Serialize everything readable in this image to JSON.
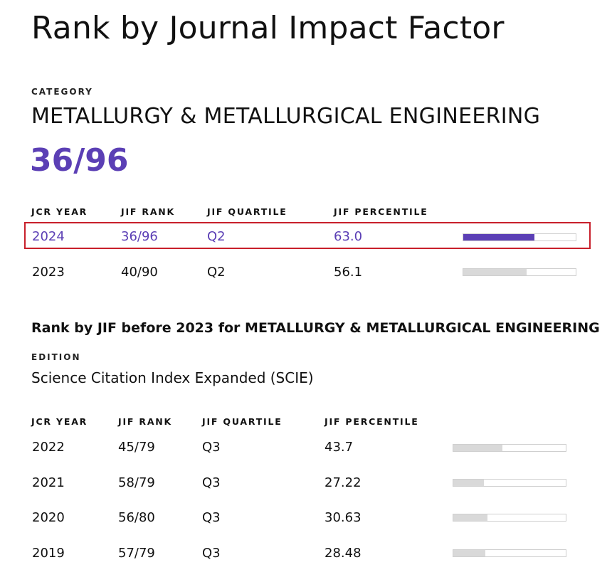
{
  "title": "Rank by Journal Impact Factor",
  "category": {
    "label": "CATEGORY",
    "name": "METALLURGY & METALLURGICAL ENGINEERING",
    "rank": "36/96"
  },
  "current_table": {
    "headers": [
      "JCR YEAR",
      "JIF RANK",
      "JIF QUARTILE",
      "JIF PERCENTILE"
    ],
    "rows": [
      {
        "year": "2024",
        "rank": "36/96",
        "quartile": "Q2",
        "percentile": "63.0",
        "fraction": 0.63,
        "highlighted": true
      },
      {
        "year": "2023",
        "rank": "40/90",
        "quartile": "Q2",
        "percentile": "56.1",
        "fraction": 0.561,
        "highlighted": false
      }
    ]
  },
  "before_2023": {
    "heading": "Rank by JIF before 2023 for METALLURGY & METALLURGICAL ENGINEERING",
    "edition_label": "EDITION",
    "edition_value": "Science Citation Index Expanded (SCIE)",
    "headers": [
      "JCR YEAR",
      "JIF RANK",
      "JIF QUARTILE",
      "JIF PERCENTILE"
    ],
    "rows": [
      {
        "year": "2022",
        "rank": "45/79",
        "quartile": "Q3",
        "percentile": "43.7",
        "fraction": 0.437
      },
      {
        "year": "2021",
        "rank": "58/79",
        "quartile": "Q3",
        "percentile": "27.22",
        "fraction": 0.2722
      },
      {
        "year": "2020",
        "rank": "56/80",
        "quartile": "Q3",
        "percentile": "30.63",
        "fraction": 0.3063
      },
      {
        "year": "2019",
        "rank": "57/79",
        "quartile": "Q3",
        "percentile": "28.48",
        "fraction": 0.2848
      }
    ]
  },
  "colors": {
    "accent": "#5b3fb5",
    "highlight_border": "#c8202b",
    "bar_grey": "#d9d9d9"
  }
}
